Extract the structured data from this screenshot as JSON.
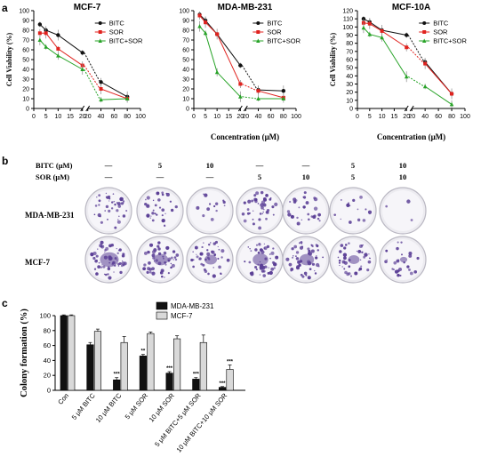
{
  "panel_labels": {
    "a": "a",
    "b": "b",
    "c": "c"
  },
  "chart_data": [
    {
      "type": "line",
      "title": "MCF-7",
      "xlabel": "",
      "ylabel": "Cell Viability (%)",
      "xlim": [
        0,
        100
      ],
      "ylim": [
        0,
        100
      ],
      "xticks_left": [
        "0",
        "5",
        "10",
        "15",
        "20"
      ],
      "xticks_right": [
        "20",
        "40",
        "60",
        "80",
        "100"
      ],
      "yticks": [
        "0",
        "10",
        "20",
        "30",
        "40",
        "50",
        "60",
        "70",
        "80",
        "90",
        "100"
      ],
      "x": [
        2.5,
        5,
        10,
        20,
        40,
        80
      ],
      "series": [
        {
          "name": "BITC",
          "color": "#111111",
          "values": [
            86,
            80,
            75,
            57,
            27,
            12
          ]
        },
        {
          "name": "SOR",
          "color": "#e0221e",
          "values": [
            77,
            77,
            61,
            44,
            20,
            10
          ]
        },
        {
          "name": "BITC+SOR",
          "color": "#27a327",
          "values": [
            70,
            63,
            54,
            40,
            9,
            10
          ]
        }
      ]
    },
    {
      "type": "line",
      "title": "MDA-MB-231",
      "xlabel": "Concentration (μM)",
      "ylabel": "",
      "xlim": [
        0,
        100
      ],
      "ylim": [
        0,
        100
      ],
      "xticks_left": [
        "0",
        "5",
        "10",
        "15",
        "20"
      ],
      "xticks_right": [
        "20",
        "40",
        "60",
        "80",
        "100"
      ],
      "yticks": [
        "0",
        "10",
        "20",
        "30",
        "40",
        "50",
        "60",
        "70",
        "80",
        "90",
        "100"
      ],
      "x": [
        2.5,
        5,
        10,
        20,
        40,
        80
      ],
      "series": [
        {
          "name": "BITC",
          "color": "#111111",
          "values": [
            96,
            90,
            76,
            44,
            19,
            18
          ]
        },
        {
          "name": "SOR",
          "color": "#e0221e",
          "values": [
            95,
            88,
            76,
            25,
            18,
            11
          ]
        },
        {
          "name": "BITC+SOR",
          "color": "#27a327",
          "values": [
            84,
            77,
            37,
            12,
            10,
            10
          ]
        }
      ]
    },
    {
      "type": "line",
      "title": "MCF-10A",
      "xlabel": "Concentration (μM)",
      "ylabel": "Cell Viability (%)",
      "xlim": [
        0,
        100
      ],
      "ylim": [
        0,
        120
      ],
      "xticks_left": [
        "0",
        "5",
        "10",
        "15",
        "20"
      ],
      "xticks_right": [
        "20",
        "40",
        "60",
        "80",
        "100"
      ],
      "yticks": [
        "0",
        "10",
        "20",
        "30",
        "40",
        "50",
        "60",
        "70",
        "80",
        "90",
        "100",
        "110",
        "120"
      ],
      "x": [
        2.5,
        5,
        10,
        20,
        40,
        80
      ],
      "series": [
        {
          "name": "BITC",
          "color": "#111111",
          "values": [
            110,
            106,
            96,
            90,
            57,
            18
          ]
        },
        {
          "name": "SOR",
          "color": "#e0221e",
          "values": [
            105,
            104,
            95,
            75,
            55,
            18
          ]
        },
        {
          "name": "BITC+SOR",
          "color": "#27a327",
          "values": [
            99,
            91,
            87,
            39,
            27,
            5
          ]
        }
      ]
    },
    {
      "type": "bar",
      "title": "",
      "xlabel": "",
      "ylabel": "Colony formation (%)",
      "ylim": [
        0,
        100
      ],
      "yticks": [
        "0",
        "20",
        "40",
        "60",
        "80",
        "100"
      ],
      "categories": [
        "Con",
        "5 μM BITC",
        "10 μM BITC",
        "5 μM SOR",
        "10 μM SOR",
        "5 μM BITC+5 μM SOR",
        "10 μM BITC+10 μM SOR"
      ],
      "series": [
        {
          "name": "MDA-MB-231",
          "color": "#111111",
          "values": [
            100,
            61,
            14,
            46,
            23,
            15,
            4
          ],
          "errors": [
            1,
            3,
            3,
            2,
            2,
            2,
            1
          ]
        },
        {
          "name": "MCF-7",
          "color": "#d9d9d9",
          "values": [
            100,
            79,
            64,
            76,
            69,
            64,
            28
          ],
          "errors": [
            1,
            3,
            8,
            2,
            4,
            10,
            6
          ]
        }
      ],
      "significance": {
        "MDA-MB-231": [
          "",
          "",
          "***",
          "**",
          "***",
          "***",
          "***"
        ],
        "MCF-7": [
          "",
          "",
          "",
          "",
          "",
          "",
          "***"
        ]
      }
    }
  ],
  "panel_b": {
    "row_header_bitc": "BITC (μM)",
    "row_header_sor": "SOR  (μM)",
    "bitc_doses": [
      "—",
      "5",
      "10",
      "—",
      "—",
      "5",
      "10"
    ],
    "sor_doses": [
      "—",
      "—",
      "—",
      "5",
      "10",
      "5",
      "10"
    ],
    "row_labels": [
      "MDA-MB-231",
      "MCF-7"
    ],
    "density_mda": [
      0.55,
      0.45,
      0.18,
      0.6,
      0.4,
      0.22,
      0.04
    ],
    "density_mcf": [
      0.9,
      0.7,
      0.6,
      0.75,
      0.7,
      0.55,
      0.35
    ],
    "dish_color": "#5b3f96"
  }
}
